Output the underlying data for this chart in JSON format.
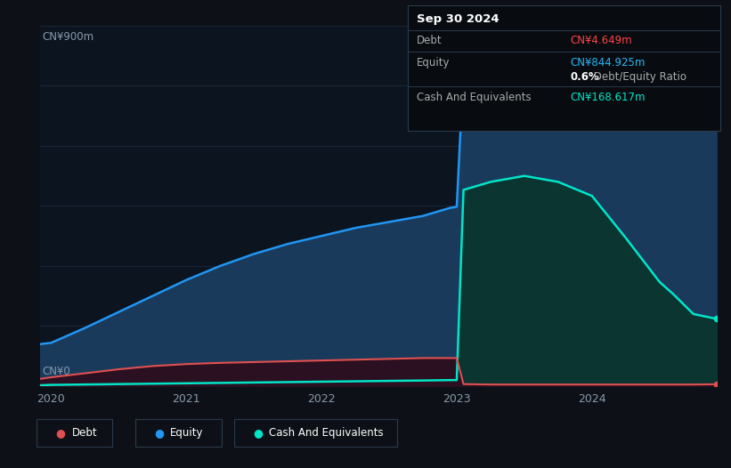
{
  "bg_color": "#0d1117",
  "plot_bg_color": "#0c1420",
  "grid_color": "#1a2535",
  "ylabel_top": "CN¥900m",
  "ylabel_bottom": "CN¥0",
  "ylim": [
    0,
    900
  ],
  "equity_color": "#2196f3",
  "equity_fill": "#1a3a5c",
  "cash_color": "#00e5c8",
  "cash_fill": "#0a3530",
  "debt_color": "#e05050",
  "debt_fill": "#2a1020",
  "tooltip_bg": "#080c10",
  "tooltip_border": "#2a3a4a",
  "tooltip_title": "Sep 30 2024",
  "tooltip_debt_label": "Debt",
  "tooltip_debt_value": "CN¥4.649m",
  "tooltip_debt_color": "#ff4444",
  "tooltip_equity_label": "Equity",
  "tooltip_equity_value": "CN¥844.925m",
  "tooltip_equity_color": "#29b6f6",
  "tooltip_ratio_bold": "0.6%",
  "tooltip_ratio_rest": " Debt/Equity Ratio",
  "tooltip_cash_label": "Cash And Equivalents",
  "tooltip_cash_value": "CN¥168.617m",
  "tooltip_cash_color": "#00e5c8",
  "legend_labels": [
    "Debt",
    "Equity",
    "Cash And Equivalents"
  ],
  "legend_colors": [
    "#e05050",
    "#2196f3",
    "#00e5c8"
  ],
  "x_ticks": [
    2020,
    2021,
    2022,
    2023,
    2024
  ],
  "time_points": [
    2019.92,
    2020.0,
    2020.25,
    2020.5,
    2020.75,
    2021.0,
    2021.25,
    2021.5,
    2021.75,
    2022.0,
    2022.25,
    2022.5,
    2022.75,
    2022.95,
    2023.0,
    2023.05,
    2023.25,
    2023.5,
    2023.75,
    2024.0,
    2024.25,
    2024.5,
    2024.6,
    2024.75,
    2024.92
  ],
  "equity_values": [
    105,
    108,
    145,
    185,
    225,
    265,
    300,
    330,
    355,
    375,
    395,
    410,
    425,
    445,
    448,
    790,
    810,
    825,
    838,
    848,
    855,
    852,
    850,
    848,
    845
  ],
  "cash_values": [
    2,
    3,
    4,
    5,
    6,
    7,
    8,
    9,
    10,
    11,
    12,
    13,
    14,
    15,
    15,
    490,
    510,
    525,
    510,
    475,
    370,
    260,
    230,
    180,
    168
  ],
  "debt_values": [
    18,
    22,
    32,
    42,
    50,
    55,
    58,
    60,
    62,
    64,
    66,
    68,
    70,
    70,
    70,
    5,
    4,
    4,
    4,
    4,
    4,
    4,
    4,
    4,
    4.649
  ]
}
